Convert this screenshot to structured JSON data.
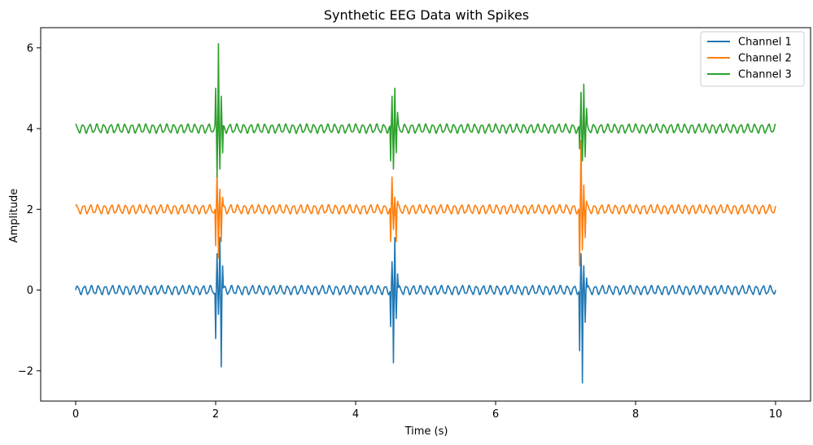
{
  "chart_data": {
    "type": "line",
    "title": "Synthetic EEG Data with Spikes",
    "xlabel": "Time (s)",
    "ylabel": "Amplitude",
    "xlim": [
      -0.5,
      10.5
    ],
    "ylim": [
      -2.75,
      6.5
    ],
    "xticks": [
      0,
      2,
      4,
      6,
      8,
      10
    ],
    "yticks": [
      -2,
      0,
      2,
      4,
      6
    ],
    "xtick_labels": [
      "0",
      "2",
      "4",
      "6",
      "8",
      "10"
    ],
    "ytick_labels": [
      "−2",
      "0",
      "2",
      "4",
      "6"
    ],
    "grid": false,
    "legend_position": "top-right",
    "spike_times": [
      2.0,
      4.5,
      7.2
    ],
    "oscillation_amplitude": 0.1,
    "oscillation_frequency_hz": 10,
    "series": [
      {
        "name": "Channel 1",
        "color": "#1f77b4",
        "offset": 0,
        "spikes": [
          {
            "t": 2.0,
            "v": -1.2
          },
          {
            "t": 2.02,
            "v": 0.9
          },
          {
            "t": 2.04,
            "v": -0.6
          },
          {
            "t": 2.06,
            "v": 1.3
          },
          {
            "t": 2.08,
            "v": -1.9
          },
          {
            "t": 2.1,
            "v": 0.6
          },
          {
            "t": 4.5,
            "v": -0.9
          },
          {
            "t": 4.52,
            "v": 0.7
          },
          {
            "t": 4.54,
            "v": -1.8
          },
          {
            "t": 4.56,
            "v": 1.3
          },
          {
            "t": 4.58,
            "v": -0.7
          },
          {
            "t": 4.6,
            "v": 0.4
          },
          {
            "t": 7.2,
            "v": -1.5
          },
          {
            "t": 7.22,
            "v": 0.9
          },
          {
            "t": 7.24,
            "v": -2.3
          },
          {
            "t": 7.26,
            "v": 0.6
          },
          {
            "t": 7.28,
            "v": -0.8
          },
          {
            "t": 7.3,
            "v": 0.3
          }
        ]
      },
      {
        "name": "Channel 2",
        "color": "#ff7f0e",
        "offset": 2,
        "spikes": [
          {
            "t": 2.0,
            "v": 1.1
          },
          {
            "t": 2.02,
            "v": 2.9
          },
          {
            "t": 2.04,
            "v": 0.8
          },
          {
            "t": 2.06,
            "v": 2.5
          },
          {
            "t": 2.08,
            "v": 1.2
          },
          {
            "t": 2.1,
            "v": 2.3
          },
          {
            "t": 4.5,
            "v": 1.2
          },
          {
            "t": 4.52,
            "v": 2.8
          },
          {
            "t": 4.54,
            "v": 1.5
          },
          {
            "t": 4.56,
            "v": 2.3
          },
          {
            "t": 4.58,
            "v": 1.2
          },
          {
            "t": 4.6,
            "v": 2.2
          },
          {
            "t": 7.2,
            "v": 0.6
          },
          {
            "t": 7.22,
            "v": 3.7
          },
          {
            "t": 7.24,
            "v": 1.0
          },
          {
            "t": 7.26,
            "v": 2.6
          },
          {
            "t": 7.28,
            "v": 1.3
          },
          {
            "t": 7.3,
            "v": 2.2
          }
        ]
      },
      {
        "name": "Channel 3",
        "color": "#2ca02c",
        "offset": 4,
        "spikes": [
          {
            "t": 2.0,
            "v": 5.0
          },
          {
            "t": 2.02,
            "v": 2.8
          },
          {
            "t": 2.04,
            "v": 6.1
          },
          {
            "t": 2.06,
            "v": 3.0
          },
          {
            "t": 2.08,
            "v": 4.8
          },
          {
            "t": 2.1,
            "v": 3.4
          },
          {
            "t": 4.5,
            "v": 3.2
          },
          {
            "t": 4.52,
            "v": 4.8
          },
          {
            "t": 4.54,
            "v": 3.0
          },
          {
            "t": 4.56,
            "v": 5.0
          },
          {
            "t": 4.58,
            "v": 3.4
          },
          {
            "t": 4.6,
            "v": 4.4
          },
          {
            "t": 7.2,
            "v": 3.5
          },
          {
            "t": 7.22,
            "v": 4.9
          },
          {
            "t": 7.24,
            "v": 3.2
          },
          {
            "t": 7.26,
            "v": 5.1
          },
          {
            "t": 7.28,
            "v": 3.3
          },
          {
            "t": 7.3,
            "v": 4.5
          }
        ]
      }
    ]
  }
}
